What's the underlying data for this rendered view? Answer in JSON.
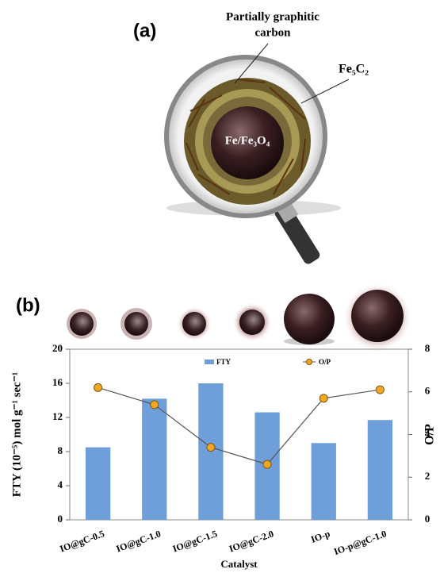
{
  "panel_a": {
    "label": "(a)",
    "callouts": [
      "Partially graphitic",
      "carbon"
    ],
    "carbide": "Fe₅C₂",
    "core": "Fe/Fe₃O₄"
  },
  "panel_b": {
    "label": "(b)"
  },
  "chart_data": {
    "type": "bar_line",
    "xlabel": "Catalyst",
    "ylabel": "FTY (10⁻⁵) mol g⁻¹ sec⁻¹",
    "y2label": "O/P",
    "categories": [
      "IO@gC-0.5",
      "IO@gC-1.0",
      "IO@gC-1.5",
      "IO@gC-2.0",
      "IO-p",
      "IO-p@gC-1.0"
    ],
    "series": [
      {
        "name": "FTY",
        "color": "#6f9fd8",
        "values": [
          8.5,
          14.2,
          16,
          12.6,
          9,
          11.7
        ]
      },
      {
        "name": "O/P",
        "color": "#f5a623",
        "axis": "y2",
        "values": [
          6.2,
          5.4,
          3.4,
          2.6,
          5.7,
          6.1
        ]
      }
    ],
    "ylim": [
      0,
      20
    ],
    "yticks": [
      0,
      4,
      8,
      12,
      16,
      20
    ],
    "y2lim": [
      0,
      8
    ],
    "y2ticks": [
      0,
      2,
      4,
      6,
      8
    ],
    "legend": "top",
    "grid": false
  }
}
